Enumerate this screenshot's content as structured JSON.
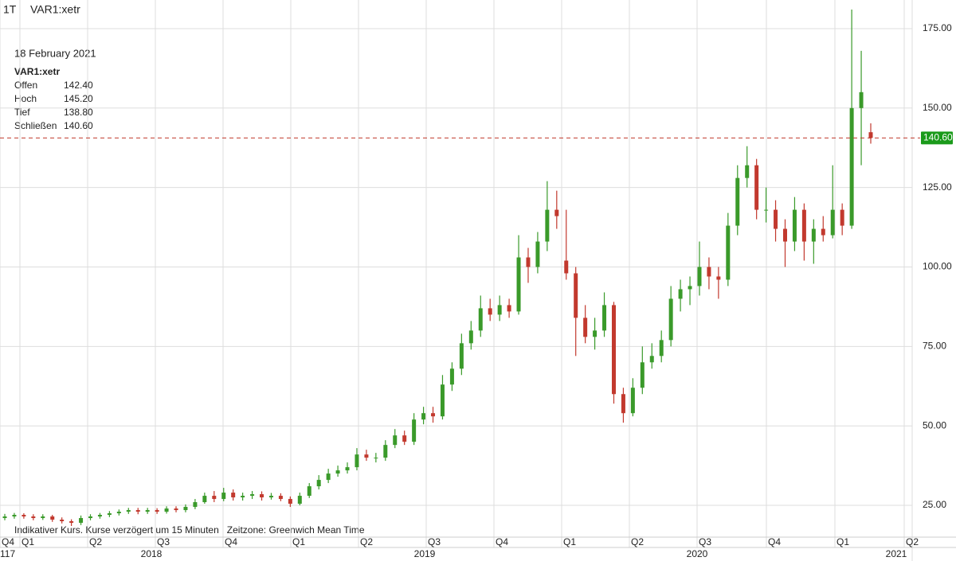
{
  "chart_data": {
    "type": "candlestick",
    "interval": "1T",
    "symbol": "VAR1:xetr",
    "info": {
      "date": "18 February 2021",
      "symbol": "VAR1:xetr",
      "rows": [
        [
          "Offen",
          "142.40"
        ],
        [
          "Hoch",
          "145.20"
        ],
        [
          "Tief",
          "138.80"
        ],
        [
          "Schließen",
          "140.60"
        ]
      ]
    },
    "footer": "Indikativer Kurs. Kurse verzögert um 15 Minuten   Zeitzone: Greenwich Mean Time",
    "quarter_labels": [
      "Q4",
      "Q1",
      "Q2",
      "Q3",
      "Q4",
      "Q1",
      "Q2",
      "Q3",
      "Q4",
      "Q1",
      "Q2",
      "Q3",
      "Q4",
      "Q1",
      "Q2"
    ],
    "year_labels": [
      "117",
      "2018",
      "2019",
      "2020",
      "2021"
    ],
    "ylim": [
      18.75,
      184
    ],
    "yticks": [
      {
        "value": 25,
        "label": "25.00"
      },
      {
        "value": 50,
        "label": "50.00"
      },
      {
        "value": 75,
        "label": "75.00"
      },
      {
        "value": 100,
        "label": "100.00"
      },
      {
        "value": 125,
        "label": "125.00"
      },
      {
        "value": 150,
        "label": "150.00"
      },
      {
        "value": 175,
        "label": "175.00"
      }
    ],
    "grid": true,
    "up_color": "#3a9a2a",
    "down_color": "#c2392e",
    "last_price": {
      "value": 140.6,
      "label": "140.60",
      "color": "#1a9a1a",
      "line_color": "#c0392b"
    },
    "open": [
      21,
      21.5,
      22,
      21.5,
      21,
      21.5,
      20.5,
      20,
      19.5,
      21,
      21.5,
      22,
      22.5,
      23,
      23.5,
      23,
      23.5,
      23,
      24,
      23.5,
      24.5,
      26,
      28,
      27,
      29,
      27.5,
      28,
      28.5,
      27.5,
      28,
      27,
      25.5,
      28,
      31,
      33,
      35,
      36,
      37,
      41,
      40,
      40,
      44,
      47,
      45,
      52,
      54,
      53,
      63,
      68,
      76,
      80,
      87,
      85,
      88,
      86,
      103,
      100,
      108,
      118,
      102,
      98,
      84,
      78,
      80,
      88,
      60,
      54,
      62,
      70,
      72,
      77,
      90,
      93,
      94,
      100,
      97,
      96,
      113,
      128,
      132,
      118,
      118,
      112,
      108,
      118,
      108,
      112,
      110,
      118,
      113,
      150,
      142.4
    ],
    "high": [
      22.3,
      22.6,
      22.5,
      22.2,
      22.2,
      22,
      21.2,
      20.6,
      21.8,
      22.2,
      22.6,
      23.2,
      23.7,
      24.2,
      24.2,
      24.2,
      24.1,
      24.7,
      24.7,
      25.3,
      27,
      29,
      29.5,
      30.5,
      30,
      29,
      29.5,
      29.4,
      28.9,
      28.8,
      27.8,
      29,
      32,
      34.5,
      36.5,
      37.5,
      38.5,
      43,
      42.5,
      41.5,
      45.5,
      49,
      48.5,
      54,
      56,
      56,
      66,
      70,
      79,
      83,
      91,
      90,
      91,
      90,
      110,
      106,
      111,
      127,
      124,
      118,
      100,
      88,
      84,
      92,
      89,
      62,
      65,
      75,
      76,
      80,
      94,
      96,
      97,
      108,
      103,
      100,
      117,
      132,
      138,
      134,
      125,
      121,
      115,
      122,
      120,
      115,
      116,
      132,
      120,
      181,
      168,
      145.2
    ],
    "low": [
      20.3,
      20.8,
      20.8,
      20.3,
      20.4,
      19.8,
      19.3,
      18.5,
      18.8,
      20.3,
      20.8,
      21.3,
      21.8,
      22.3,
      22.2,
      22.3,
      22.3,
      22.4,
      22.8,
      22.8,
      23.8,
      25.5,
      26,
      26.3,
      26.5,
      26.5,
      27,
      26.5,
      26.8,
      26.3,
      24.5,
      25,
      27.3,
      30,
      32,
      34,
      35,
      36,
      39,
      38.5,
      39,
      43,
      44,
      44,
      50.5,
      51,
      52,
      61,
      66,
      74,
      78,
      83,
      83,
      84,
      85,
      95,
      98,
      105,
      112,
      96,
      72,
      76,
      74,
      78,
      57,
      51,
      53,
      60,
      68,
      70,
      75,
      86,
      88,
      91,
      93,
      90,
      94,
      110,
      125,
      115,
      114,
      108,
      100,
      105,
      102,
      101,
      108,
      109,
      110,
      112,
      132,
      138.8
    ],
    "close": [
      21.5,
      22,
      21.5,
      21,
      21.5,
      20.5,
      20,
      19.5,
      21,
      21.5,
      22,
      22.5,
      23,
      23.5,
      23,
      23.5,
      23,
      24,
      23.5,
      24.5,
      26,
      28,
      27,
      29,
      27.5,
      28,
      28.5,
      27.5,
      28,
      27,
      25.5,
      28,
      31,
      33,
      35,
      36,
      37,
      41,
      40,
      40,
      44,
      47,
      45,
      52,
      54,
      53,
      63,
      68,
      76,
      80,
      87,
      85,
      88,
      86,
      103,
      100,
      108,
      118,
      116,
      98,
      84,
      78,
      80,
      88,
      60,
      54,
      62,
      70,
      72,
      77,
      90,
      93,
      94,
      100,
      97,
      96,
      113,
      128,
      132,
      118,
      118,
      112,
      108,
      118,
      108,
      112,
      110,
      118,
      113,
      150,
      155,
      140.6
    ]
  }
}
